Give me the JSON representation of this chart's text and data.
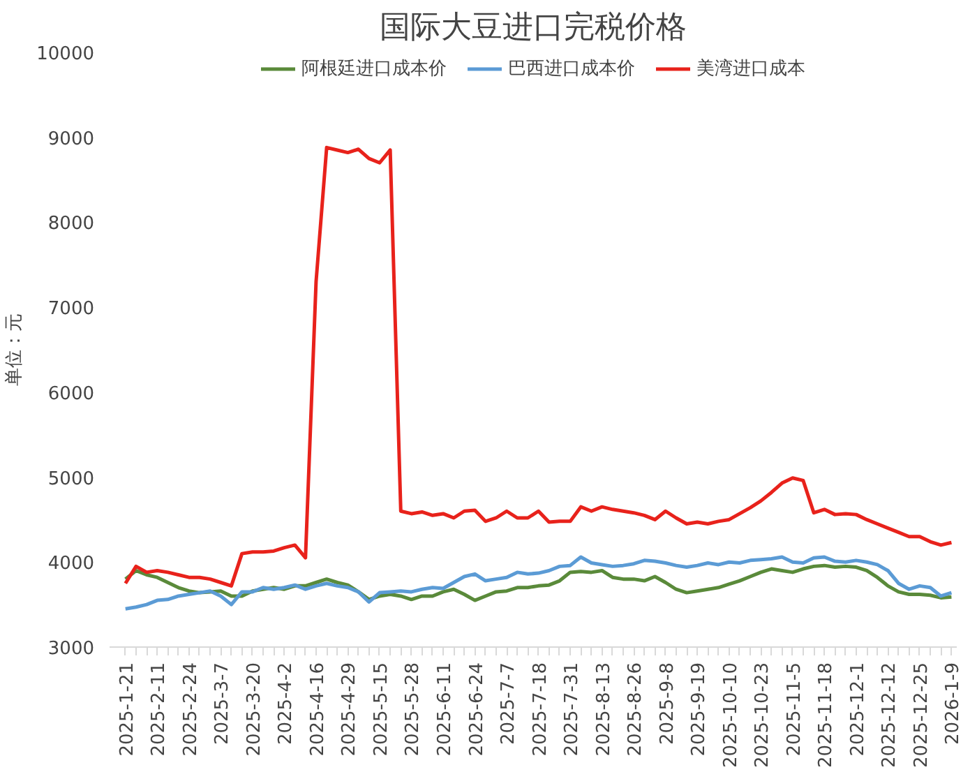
{
  "chart_data": {
    "type": "line",
    "title": "国际大豆进口完税价格",
    "ylabel": "单位：元",
    "categories": [
      "2025-1-21",
      null,
      null,
      "2025-2-11",
      null,
      null,
      "2025-2-24",
      null,
      null,
      "2025-3-7",
      null,
      null,
      "2025-3-20",
      null,
      null,
      "2025-4-2",
      null,
      null,
      "2025-4-16",
      null,
      null,
      "2025-4-29",
      null,
      null,
      "2025-5-15",
      null,
      null,
      "2025-5-28",
      null,
      null,
      "2025-6-11",
      null,
      null,
      "2025-6-24",
      null,
      null,
      "2025-7-7",
      null,
      null,
      "2025-7-18",
      null,
      null,
      "2025-7-31",
      null,
      null,
      "2025-8-13",
      null,
      null,
      "2025-8-26",
      null,
      null,
      "2025-9-8",
      null,
      null,
      "2025-9-19",
      null,
      null,
      "2025-10-10",
      null,
      null,
      "2025-10-23",
      null,
      null,
      "2025-11-5",
      null,
      null,
      "2025-11-18",
      null,
      null,
      "2025-12-1",
      null,
      null,
      "2025-12-12",
      null,
      null,
      "2025-12-25",
      null,
      null,
      "2026-1-9"
    ],
    "ylim": [
      3000,
      10000
    ],
    "yticks": [
      3000,
      4000,
      5000,
      6000,
      7000,
      8000,
      9000,
      10000
    ],
    "grid": false,
    "legend": "top",
    "marker": "none",
    "line_style": "solid",
    "series": [
      {
        "name": "阿根廷进口成本价",
        "color": "#5a8a3a",
        "values": [
          3800,
          3900,
          3850,
          3820,
          3760,
          3700,
          3660,
          3640,
          3650,
          3660,
          3600,
          3600,
          3660,
          3680,
          3700,
          3680,
          3720,
          3720,
          3760,
          3800,
          3760,
          3730,
          3650,
          3560,
          3600,
          3620,
          3600,
          3560,
          3600,
          3600,
          3650,
          3680,
          3620,
          3550,
          3600,
          3650,
          3660,
          3700,
          3700,
          3720,
          3730,
          3780,
          3880,
          3890,
          3880,
          3900,
          3820,
          3800,
          3800,
          3780,
          3830,
          3760,
          3680,
          3640,
          3660,
          3680,
          3700,
          3740,
          3780,
          3830,
          3880,
          3920,
          3900,
          3880,
          3920,
          3950,
          3960,
          3940,
          3950,
          3940,
          3900,
          3820,
          3720,
          3650,
          3620,
          3620,
          3610,
          3580,
          3590
        ]
      },
      {
        "name": "巴西进口成本价",
        "color": "#5b9bd5",
        "values": [
          3450,
          3470,
          3500,
          3550,
          3560,
          3600,
          3620,
          3640,
          3660,
          3600,
          3500,
          3650,
          3650,
          3700,
          3680,
          3700,
          3730,
          3680,
          3720,
          3750,
          3720,
          3700,
          3650,
          3530,
          3640,
          3650,
          3660,
          3650,
          3680,
          3700,
          3690,
          3760,
          3830,
          3860,
          3780,
          3800,
          3820,
          3880,
          3860,
          3870,
          3900,
          3950,
          3960,
          4060,
          3990,
          3970,
          3950,
          3960,
          3980,
          4020,
          4010,
          3990,
          3960,
          3940,
          3960,
          3990,
          3970,
          4000,
          3990,
          4020,
          4030,
          4040,
          4060,
          4000,
          3990,
          4050,
          4060,
          4010,
          4000,
          4020,
          4000,
          3970,
          3900,
          3750,
          3680,
          3720,
          3700,
          3600,
          3640
        ]
      },
      {
        "name": "美湾进口成本",
        "color": "#e8221b",
        "values": [
          3750,
          3950,
          3880,
          3900,
          3880,
          3850,
          3820,
          3820,
          3800,
          3760,
          3720,
          4100,
          4120,
          4120,
          4130,
          4170,
          4200,
          4050,
          7300,
          8880,
          8850,
          8820,
          8860,
          8750,
          8700,
          8850,
          4600,
          4570,
          4590,
          4550,
          4570,
          4520,
          4600,
          4610,
          4480,
          4520,
          4600,
          4520,
          4520,
          4600,
          4470,
          4480,
          4480,
          4650,
          4600,
          4650,
          4620,
          4600,
          4580,
          4550,
          4500,
          4600,
          4520,
          4450,
          4470,
          4450,
          4480,
          4500,
          4570,
          4640,
          4720,
          4820,
          4930,
          4990,
          4960,
          4580,
          4620,
          4560,
          4570,
          4560,
          4500,
          4450,
          4400,
          4350,
          4300,
          4300,
          4240,
          4200,
          4230
        ]
      }
    ]
  }
}
